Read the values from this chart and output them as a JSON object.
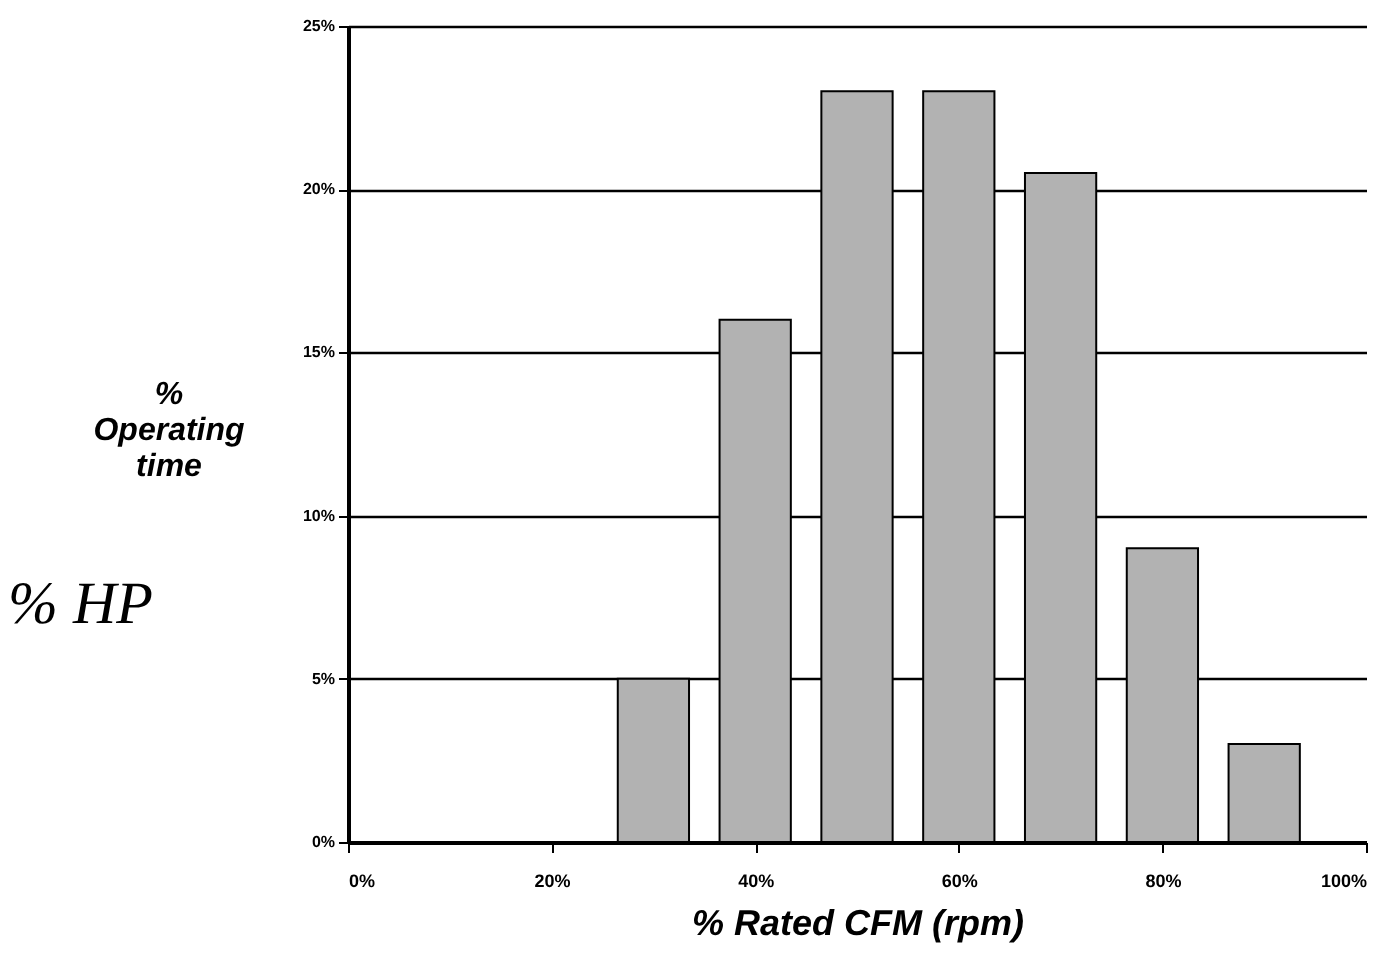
{
  "chart_data": {
    "type": "bar",
    "xlabel": "% Rated CFM (rpm)",
    "ylabel": "% Operating time",
    "x": [
      30,
      40,
      50,
      60,
      70,
      80,
      90
    ],
    "values": [
      5,
      16,
      23,
      23,
      20.5,
      9,
      3
    ],
    "color": "#b2b2b2",
    "xlim": [
      0,
      100
    ],
    "xticks": [
      {
        "value": 0,
        "label": "0%"
      },
      {
        "value": 20,
        "label": "20%"
      },
      {
        "value": 40,
        "label": "40%"
      },
      {
        "value": 60,
        "label": "60%"
      },
      {
        "value": 80,
        "label": "80%"
      },
      {
        "value": 100,
        "label": "100%"
      }
    ],
    "ylim": [
      0,
      25
    ],
    "yticks": [
      {
        "value": 0,
        "label": "0%"
      },
      {
        "value": 5,
        "label": "5%"
      },
      {
        "value": 10,
        "label": "10%"
      },
      {
        "value": 15,
        "label": "15%"
      },
      {
        "value": 20,
        "label": "20%"
      },
      {
        "value": 25,
        "label": "25%"
      }
    ],
    "grid": "y",
    "annotations": [
      "% HP"
    ]
  }
}
